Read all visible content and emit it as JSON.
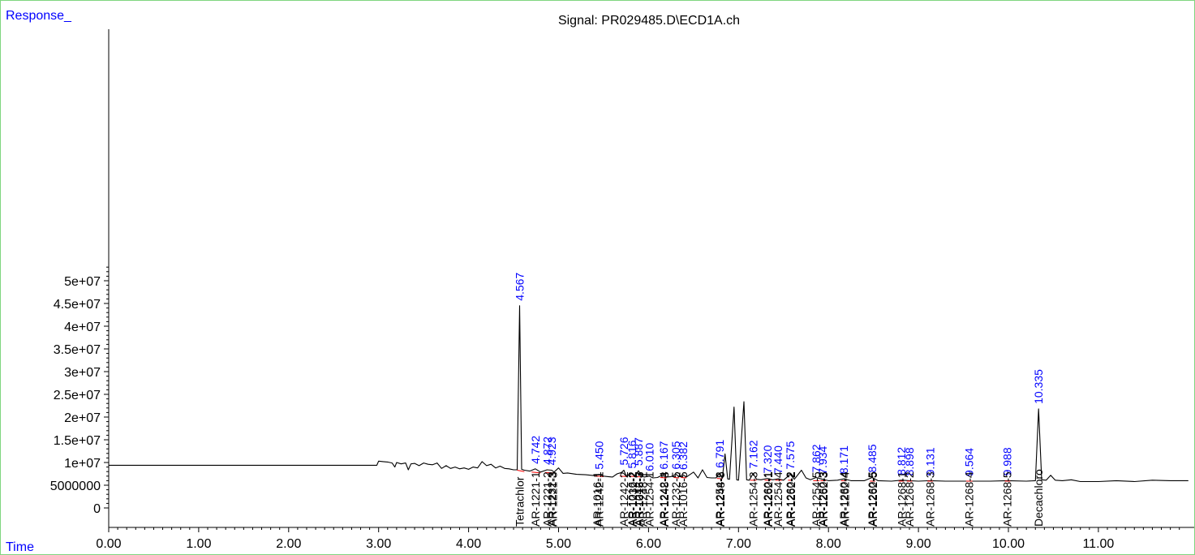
{
  "chart_data": {
    "type": "line",
    "title": "Signal: PR029485.D\\ECD1A.ch",
    "ylabel": "Response_",
    "xlabel": "Time",
    "xlim": [
      0.0,
      12.0
    ],
    "ylim": [
      -2200000,
      54500000
    ],
    "xticks": [
      "0.00",
      "1.00",
      "2.00",
      "3.00",
      "4.00",
      "5.00",
      "6.00",
      "7.00",
      "8.00",
      "9.00",
      "10.00",
      "11.00"
    ],
    "yticks": [
      "0",
      "5000000",
      "1e+07",
      "1.5e+07",
      "2e+07",
      "2.5e+07",
      "3e+07",
      "3.5e+07",
      "4e+07",
      "4.5e+07",
      "5e+07"
    ],
    "colors": {
      "trace": "#000000",
      "rt_label": "#0000ff",
      "baseline": "#ff0000",
      "axis_title": "#0000ff",
      "frame": "#7fd67f"
    },
    "trace": [
      [
        0.0,
        9400000
      ],
      [
        2.98,
        9400000
      ],
      [
        3.0,
        10300000
      ],
      [
        3.05,
        10200000
      ],
      [
        3.1,
        10100000
      ],
      [
        3.15,
        9900000
      ],
      [
        3.18,
        9000000
      ],
      [
        3.2,
        10000000
      ],
      [
        3.25,
        9700000
      ],
      [
        3.3,
        9900000
      ],
      [
        3.33,
        8400000
      ],
      [
        3.36,
        9700000
      ],
      [
        3.4,
        9800000
      ],
      [
        3.45,
        9300000
      ],
      [
        3.5,
        9900000
      ],
      [
        3.55,
        9600000
      ],
      [
        3.6,
        9500000
      ],
      [
        3.65,
        9900000
      ],
      [
        3.7,
        8700000
      ],
      [
        3.75,
        9300000
      ],
      [
        3.8,
        8700000
      ],
      [
        3.85,
        9000000
      ],
      [
        3.9,
        8600000
      ],
      [
        3.95,
        8800000
      ],
      [
        4.0,
        8500000
      ],
      [
        4.05,
        9000000
      ],
      [
        4.1,
        8800000
      ],
      [
        4.15,
        10200000
      ],
      [
        4.2,
        9300000
      ],
      [
        4.25,
        9600000
      ],
      [
        4.3,
        8800000
      ],
      [
        4.35,
        9200000
      ],
      [
        4.4,
        8700000
      ],
      [
        4.45,
        8600000
      ],
      [
        4.5,
        8400000
      ],
      [
        4.54,
        8400000
      ],
      [
        4.567,
        44500000
      ],
      [
        4.59,
        8500000
      ],
      [
        4.62,
        8300000
      ],
      [
        4.68,
        8100000
      ],
      [
        4.742,
        8600000
      ],
      [
        4.8,
        7900000
      ],
      [
        4.872,
        8400000
      ],
      [
        4.923,
        8300000
      ],
      [
        4.95,
        7900000
      ],
      [
        5.0,
        8800000
      ],
      [
        5.05,
        7600000
      ],
      [
        5.1,
        7700000
      ],
      [
        5.2,
        7400000
      ],
      [
        5.3,
        7300000
      ],
      [
        5.4,
        7100000
      ],
      [
        5.45,
        7400000
      ],
      [
        5.5,
        7000000
      ],
      [
        5.55,
        6900000
      ],
      [
        5.6,
        6800000
      ],
      [
        5.65,
        7500000
      ],
      [
        5.7,
        7800000
      ],
      [
        5.726,
        8300000
      ],
      [
        5.75,
        7100000
      ],
      [
        5.8,
        7400000
      ],
      [
        5.816,
        7600000
      ],
      [
        5.85,
        7000000
      ],
      [
        5.887,
        8200000
      ],
      [
        5.92,
        7200000
      ],
      [
        5.95,
        6800000
      ],
      [
        6.01,
        7000000
      ],
      [
        6.05,
        6600000
      ],
      [
        6.1,
        6700000
      ],
      [
        6.167,
        7400000
      ],
      [
        6.2,
        6800000
      ],
      [
        6.25,
        6900000
      ],
      [
        6.305,
        7400000
      ],
      [
        6.34,
        6900000
      ],
      [
        6.382,
        7300000
      ],
      [
        6.42,
        6800000
      ],
      [
        6.5,
        7900000
      ],
      [
        6.55,
        6600000
      ],
      [
        6.6,
        8400000
      ],
      [
        6.65,
        6700000
      ],
      [
        6.7,
        6600000
      ],
      [
        6.75,
        6600000
      ],
      [
        6.791,
        7700000
      ],
      [
        6.82,
        6500000
      ],
      [
        6.85,
        11900000
      ],
      [
        6.88,
        6400000
      ],
      [
        6.9,
        6300000
      ],
      [
        6.95,
        22200000
      ],
      [
        6.98,
        6200000
      ],
      [
        7.0,
        6100000
      ],
      [
        7.06,
        23400000
      ],
      [
        7.09,
        6200000
      ],
      [
        7.12,
        6100000
      ],
      [
        7.162,
        7600000
      ],
      [
        7.2,
        6300000
      ],
      [
        7.25,
        6200000
      ],
      [
        7.32,
        6500000
      ],
      [
        7.38,
        6200000
      ],
      [
        7.44,
        6400000
      ],
      [
        7.5,
        6100000
      ],
      [
        7.575,
        7400000
      ],
      [
        7.62,
        6300000
      ],
      [
        7.7,
        8300000
      ],
      [
        7.75,
        6600000
      ],
      [
        7.8,
        6200000
      ],
      [
        7.862,
        6700000
      ],
      [
        7.934,
        6300000
      ],
      [
        8.0,
        6000000
      ],
      [
        8.1,
        6100000
      ],
      [
        8.171,
        6400000
      ],
      [
        8.25,
        6000000
      ],
      [
        8.4,
        6000000
      ],
      [
        8.485,
        6700000
      ],
      [
        8.55,
        6000000
      ],
      [
        8.7,
        5900000
      ],
      [
        8.812,
        6100000
      ],
      [
        8.898,
        6000000
      ],
      [
        9.0,
        5900000
      ],
      [
        9.131,
        6000000
      ],
      [
        9.3,
        5900000
      ],
      [
        9.564,
        5900000
      ],
      [
        9.8,
        5900000
      ],
      [
        9.988,
        6000000
      ],
      [
        10.2,
        5900000
      ],
      [
        10.3,
        6000000
      ],
      [
        10.335,
        21800000
      ],
      [
        10.37,
        6200000
      ],
      [
        10.42,
        6100000
      ],
      [
        10.47,
        7200000
      ],
      [
        10.52,
        6100000
      ],
      [
        10.6,
        6000000
      ],
      [
        10.7,
        6200000
      ],
      [
        10.8,
        5800000
      ],
      [
        11.0,
        5800000
      ],
      [
        11.2,
        6000000
      ],
      [
        11.4,
        5800000
      ],
      [
        11.6,
        6100000
      ],
      [
        11.8,
        6000000
      ],
      [
        12.0,
        6000000
      ]
    ],
    "peak_labels": [
      {
        "x": 4.567,
        "y": 44500000,
        "label": "4.567"
      },
      {
        "x": 4.742,
        "y": 8600000,
        "label": "4.742"
      },
      {
        "x": 4.872,
        "y": 8400000,
        "label": "4.872"
      },
      {
        "x": 4.923,
        "y": 8300000,
        "label": "4.923"
      },
      {
        "x": 5.45,
        "y": 7400000,
        "label": "5.450"
      },
      {
        "x": 5.726,
        "y": 8300000,
        "label": "5.726"
      },
      {
        "x": 5.816,
        "y": 7600000,
        "label": "5.816"
      },
      {
        "x": 5.887,
        "y": 8200000,
        "label": "5.887"
      },
      {
        "x": 6.01,
        "y": 7000000,
        "label": "6.010"
      },
      {
        "x": 6.167,
        "y": 7400000,
        "label": "6.167"
      },
      {
        "x": 6.305,
        "y": 7400000,
        "label": "6.305"
      },
      {
        "x": 6.382,
        "y": 7300000,
        "label": "6.382"
      },
      {
        "x": 6.791,
        "y": 7700000,
        "label": "6.791"
      },
      {
        "x": 7.162,
        "y": 7600000,
        "label": "7.162"
      },
      {
        "x": 7.32,
        "y": 6500000,
        "label": "7.320"
      },
      {
        "x": 7.44,
        "y": 6400000,
        "label": "7.440"
      },
      {
        "x": 7.575,
        "y": 7400000,
        "label": "7.575"
      },
      {
        "x": 7.862,
        "y": 6700000,
        "label": "7.862"
      },
      {
        "x": 7.934,
        "y": 6300000,
        "label": "7.934"
      },
      {
        "x": 8.171,
        "y": 6400000,
        "label": "8.171"
      },
      {
        "x": 8.485,
        "y": 6700000,
        "label": "8.485"
      },
      {
        "x": 8.812,
        "y": 6100000,
        "label": "8.812"
      },
      {
        "x": 8.898,
        "y": 6000000,
        "label": "8.898"
      },
      {
        "x": 9.131,
        "y": 6000000,
        "label": "9.131"
      },
      {
        "x": 9.564,
        "y": 5900000,
        "label": "9.564"
      },
      {
        "x": 9.988,
        "y": 6000000,
        "label": "9.988"
      },
      {
        "x": 10.335,
        "y": 21800000,
        "label": "10.335"
      }
    ],
    "baselines": [
      [
        4.54,
        8300000,
        4.62,
        8000000
      ],
      [
        4.7,
        7900000,
        4.8,
        7700000
      ],
      [
        4.85,
        7800000,
        4.95,
        7700000
      ],
      [
        5.41,
        7000000,
        5.5,
        6900000
      ],
      [
        5.68,
        7000000,
        5.76,
        6900000
      ],
      [
        5.78,
        7000000,
        5.85,
        6900000
      ],
      [
        5.86,
        6900000,
        5.93,
        6800000
      ],
      [
        6.13,
        6700000,
        6.2,
        6600000
      ],
      [
        6.28,
        6700000,
        6.34,
        6600000
      ],
      [
        6.36,
        6700000,
        6.42,
        6600000
      ],
      [
        6.76,
        6500000,
        6.82,
        6400000
      ],
      [
        7.13,
        6100000,
        7.2,
        6100000
      ],
      [
        7.29,
        6100000,
        7.36,
        6100000
      ],
      [
        7.41,
        6100000,
        7.48,
        6100000
      ],
      [
        7.55,
        6100000,
        7.6,
        6100000
      ],
      [
        7.83,
        6000000,
        7.9,
        6000000
      ],
      [
        7.91,
        6000000,
        7.97,
        6000000
      ],
      [
        8.14,
        6000000,
        8.2,
        6000000
      ],
      [
        8.46,
        5900000,
        8.52,
        5900000
      ],
      [
        8.78,
        5900000,
        8.84,
        5900000
      ],
      [
        8.87,
        5900000,
        8.93,
        5900000
      ],
      [
        9.1,
        5900000,
        9.16,
        5900000
      ],
      [
        9.53,
        5900000,
        9.6,
        5900000
      ],
      [
        9.96,
        5900000,
        10.02,
        5900000
      ]
    ],
    "compounds": [
      {
        "x": 4.567,
        "label": "Tetrachlor"
      },
      {
        "x": 4.742,
        "label": "AR-1221-1"
      },
      {
        "x": 4.872,
        "label": "AR-1221-2"
      },
      {
        "x": 4.923,
        "label": "AR-1232-3"
      },
      {
        "x": 4.935,
        "label": "AR-1221-3"
      },
      {
        "x": 5.43,
        "label": "AR-1016-1"
      },
      {
        "x": 5.45,
        "label": "AR-1242-1"
      },
      {
        "x": 5.726,
        "label": "AR-1242-2"
      },
      {
        "x": 5.816,
        "label": "AR-1016-2"
      },
      {
        "x": 5.827,
        "label": "AR-1232-2"
      },
      {
        "x": 5.887,
        "label": "AR-1242-3"
      },
      {
        "x": 5.897,
        "label": "AR-1016-3"
      },
      {
        "x": 5.94,
        "label": "AR-1248-1"
      },
      {
        "x": 6.01,
        "label": "AR-1254-1"
      },
      {
        "x": 6.167,
        "label": "AR-1242-4"
      },
      {
        "x": 6.177,
        "label": "AR-1248-3"
      },
      {
        "x": 6.305,
        "label": "AR-1232-5"
      },
      {
        "x": 6.382,
        "label": "AR-1016-5"
      },
      {
        "x": 6.791,
        "label": "AR-1254-2"
      },
      {
        "x": 6.801,
        "label": "AR-1248-5"
      },
      {
        "x": 7.162,
        "label": "AR-1254-3"
      },
      {
        "x": 7.32,
        "label": "AR-1260-1"
      },
      {
        "x": 7.33,
        "label": "AR-1262-1"
      },
      {
        "x": 7.44,
        "label": "AR-1254-4"
      },
      {
        "x": 7.575,
        "label": "AR-1260-2"
      },
      {
        "x": 7.585,
        "label": "AR-1262-2"
      },
      {
        "x": 7.862,
        "label": "AR-1254-5"
      },
      {
        "x": 7.934,
        "label": "AR-1260-3"
      },
      {
        "x": 7.944,
        "label": "AR-1262-3"
      },
      {
        "x": 8.171,
        "label": "AR-1260-4"
      },
      {
        "x": 8.181,
        "label": "AR-1262-4"
      },
      {
        "x": 8.485,
        "label": "AR-1260-5"
      },
      {
        "x": 8.495,
        "label": "AR-1262-5"
      },
      {
        "x": 8.812,
        "label": "AR-1268-1"
      },
      {
        "x": 8.898,
        "label": "AR-1268-2"
      },
      {
        "x": 9.131,
        "label": "AR-1268-3"
      },
      {
        "x": 9.564,
        "label": "AR-1268-4"
      },
      {
        "x": 9.988,
        "label": "AR-1268-5"
      },
      {
        "x": 10.335,
        "label": "Decachloro"
      }
    ]
  }
}
